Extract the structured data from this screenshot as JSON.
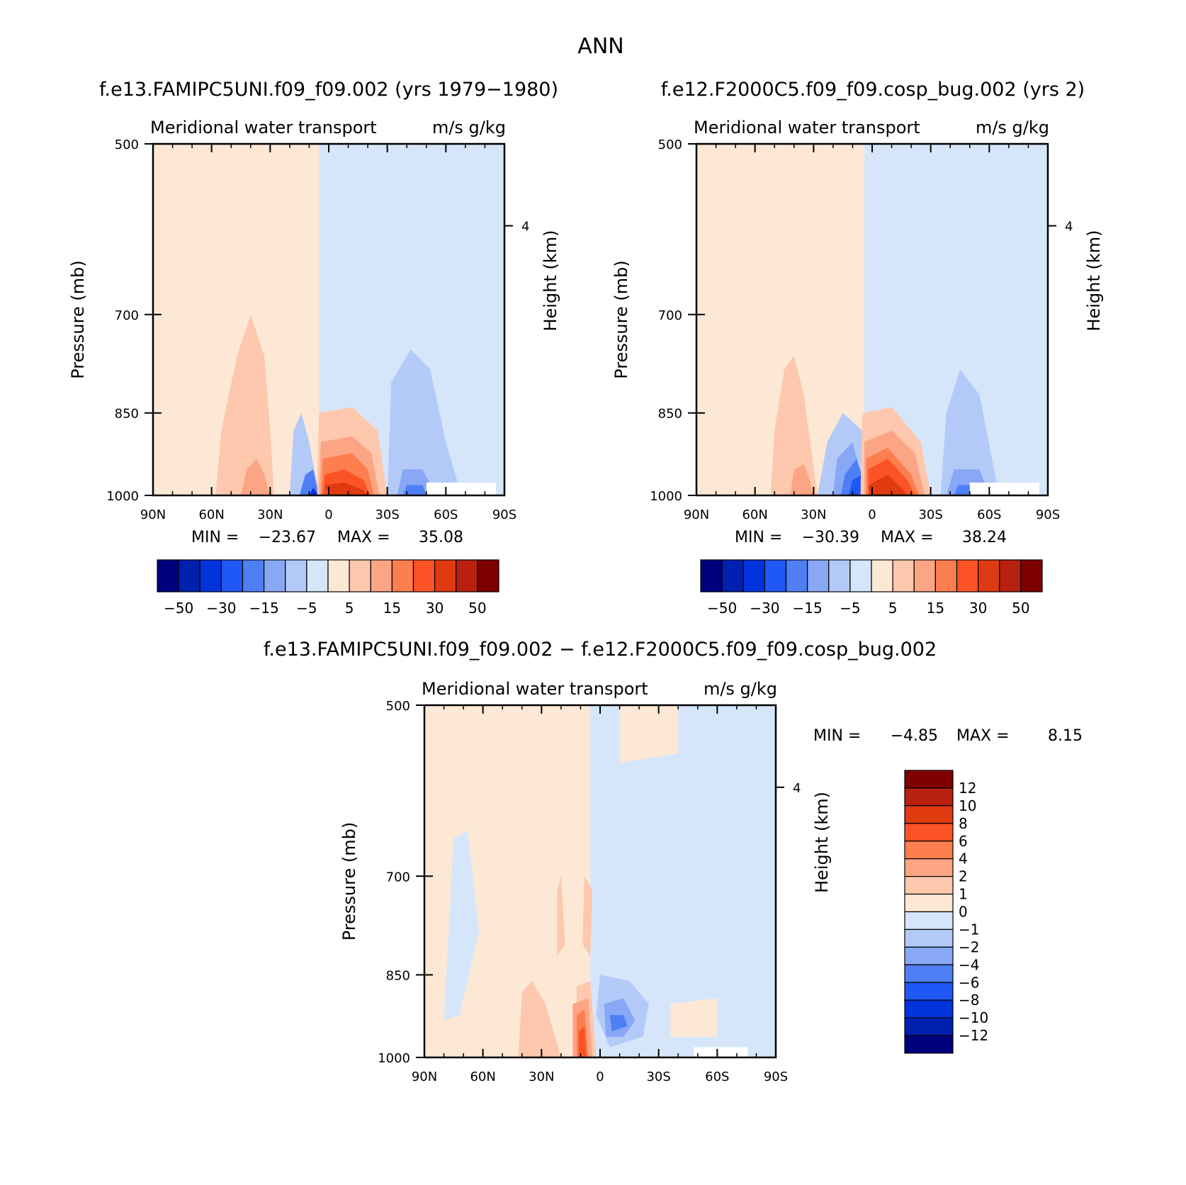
{
  "figure_title": "ANN",
  "chart_data": [
    {
      "type": "heatmap",
      "panel": "top-left",
      "title": "f.e13.FAMIPC5UNI.f09_f09.002 (yrs 1979−1980)",
      "subtitle_left": "Meridional water transport",
      "subtitle_right": "m/s g/kg",
      "xlabel": "",
      "ylabel": "Pressure (mb)",
      "ylabel_right": "Height (km)",
      "xticks": [
        "90N",
        "60N",
        "30N",
        "0",
        "30S",
        "60S",
        "90S"
      ],
      "yticks": [
        "500",
        "700",
        "850",
        "1000"
      ],
      "yticks_right": [
        "4"
      ],
      "xlim": [
        90,
        -90
      ],
      "ylim": [
        1000,
        500
      ],
      "min_label": "MIN =",
      "min_value": "−23.67",
      "max_label": "MAX =",
      "max_value": "35.08",
      "min": -23.67,
      "max": 35.08,
      "contour_levels": [
        -50,
        -40,
        -30,
        -20,
        -15,
        -10,
        -5,
        0,
        5,
        10,
        15,
        20,
        30,
        40,
        50
      ],
      "colorbar_labels": [
        "−50",
        "−30",
        "−15",
        "−5",
        "5",
        "15",
        "30",
        "50"
      ]
    },
    {
      "type": "heatmap",
      "panel": "top-right",
      "title": "f.e12.F2000C5.f09_f09.cosp_bug.002 (yrs 2)",
      "subtitle_left": "Meridional water transport",
      "subtitle_right": "m/s g/kg",
      "xlabel": "",
      "ylabel": "Pressure (mb)",
      "ylabel_right": "Height (km)",
      "xticks": [
        "90N",
        "60N",
        "30N",
        "0",
        "30S",
        "60S",
        "90S"
      ],
      "yticks": [
        "500",
        "700",
        "850",
        "1000"
      ],
      "yticks_right": [
        "4"
      ],
      "xlim": [
        90,
        -90
      ],
      "ylim": [
        1000,
        500
      ],
      "min_label": "MIN =",
      "min_value": "−30.39",
      "max_label": "MAX =",
      "max_value": "38.24",
      "min": -30.39,
      "max": 38.24,
      "contour_levels": [
        -50,
        -40,
        -30,
        -20,
        -15,
        -10,
        -5,
        0,
        5,
        10,
        15,
        20,
        30,
        40,
        50
      ],
      "colorbar_labels": [
        "−50",
        "−30",
        "−15",
        "−5",
        "5",
        "15",
        "30",
        "50"
      ]
    },
    {
      "type": "heatmap",
      "panel": "bottom",
      "title": "f.e13.FAMIPC5UNI.f09_f09.002 − f.e12.F2000C5.f09_f09.cosp_bug.002",
      "subtitle_left": "Meridional water transport",
      "subtitle_right": "m/s g/kg",
      "xlabel": "",
      "ylabel": "Pressure (mb)",
      "ylabel_right": "Height (km)",
      "xticks": [
        "90N",
        "60N",
        "30N",
        "0",
        "30S",
        "60S",
        "90S"
      ],
      "yticks": [
        "500",
        "700",
        "850",
        "1000"
      ],
      "yticks_right": [
        "4"
      ],
      "xlim": [
        90,
        -90
      ],
      "ylim": [
        1000,
        500
      ],
      "min_label": "MIN =",
      "min_value": "−4.85",
      "max_label": "MAX =",
      "max_value": "8.15",
      "min": -4.85,
      "max": 8.15,
      "contour_levels": [
        -12,
        -10,
        -8,
        -6,
        -4,
        -2,
        -1,
        0,
        1,
        2,
        4,
        6,
        8,
        10,
        12
      ],
      "colorbar_labels": [
        "12",
        "10",
        "8",
        "6",
        "4",
        "2",
        "1",
        "0",
        "−1",
        "−2",
        "−4",
        "−6",
        "−8",
        "−10",
        "−12"
      ]
    }
  ],
  "colors": {
    "palette": [
      "#00007e",
      "#0020b0",
      "#0033dc",
      "#1f58f4",
      "#4f7ff5",
      "#88a8f6",
      "#b3caf9",
      "#d5e6fb",
      "#fde8d6",
      "#fdc8ad",
      "#fca585",
      "#fd7e4e",
      "#fb5326",
      "#e03a10",
      "#b82110",
      "#800000"
    ],
    "missing": "#ffffff"
  }
}
